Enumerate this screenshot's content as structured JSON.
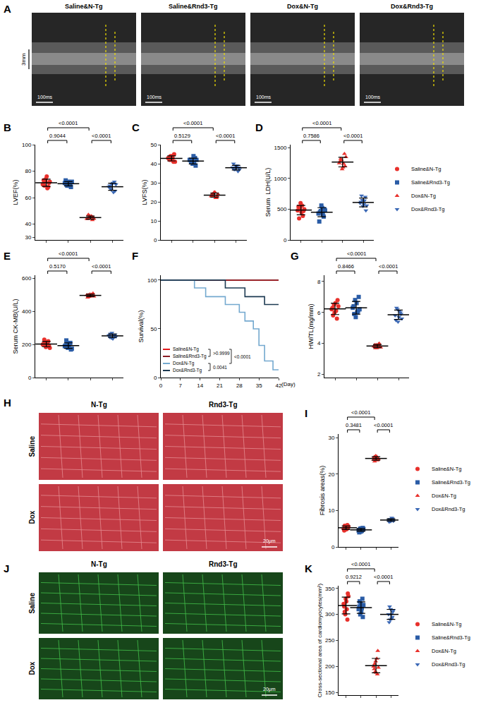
{
  "images": [
    {
      "panel": "A",
      "tiles": [
        "Saline&N-Tg",
        "Saline&Rnd3-Tg",
        "Dox&N-Tg",
        "Dox&Rnd3-Tg"
      ],
      "time_scale": "100ms",
      "depth_scale": "3mm"
    },
    {
      "panel": "H",
      "columns": [
        "N-Tg",
        "Rnd3-Tg"
      ],
      "rows": [
        "Saline",
        "Dox"
      ],
      "scale_bar": "20μm"
    },
    {
      "panel": "J",
      "columns": [
        "N-Tg",
        "Rnd3-Tg"
      ],
      "rows": [
        "Saline",
        "Dox"
      ],
      "scale_bar": "20μm"
    }
  ],
  "chart_data": [
    {
      "panel": "B",
      "type": "dot",
      "ylabel": "LVEF(%)",
      "ylim": [
        28,
        100
      ],
      "yticks": [
        30,
        40,
        60,
        80,
        100
      ],
      "grid": false,
      "tick_labels": "y",
      "series": [
        {
          "name": "Saline&N-Tg",
          "color": "#e8302b",
          "marker": "circle",
          "values": [
            70,
            72,
            74,
            68,
            71,
            73,
            69,
            76,
            67,
            72
          ]
        },
        {
          "name": "Saline&Rnd3-Tg",
          "color": "#2a5ca6",
          "marker": "square",
          "values": [
            71,
            69,
            72,
            70,
            68,
            73,
            70,
            69,
            71,
            72
          ]
        },
        {
          "name": "Dox&N-Tg",
          "color": "#e8302b",
          "marker": "triangle-up",
          "values": [
            44,
            45,
            46,
            43,
            45,
            44,
            47,
            45,
            46,
            44
          ]
        },
        {
          "name": "Dox&Rnd3-Tg",
          "color": "#3b68b5",
          "marker": "triangle-down",
          "values": [
            68,
            66,
            70,
            72,
            65,
            69,
            67,
            71,
            64,
            70
          ]
        }
      ],
      "comparisons": [
        {
          "groups": [
            0,
            2
          ],
          "label": "<0.0001"
        },
        {
          "groups": [
            0,
            1
          ],
          "label": "0.9044"
        },
        {
          "groups": [
            2,
            3
          ],
          "label": "<0.0001"
        }
      ]
    },
    {
      "panel": "C",
      "type": "dot",
      "ylabel": "LVFS(%)",
      "ylim": [
        0,
        50
      ],
      "yticks": [
        0,
        10,
        20,
        30,
        40,
        50
      ],
      "grid": false,
      "tick_labels": "y",
      "series": [
        {
          "name": "Saline&N-Tg",
          "color": "#e8302b",
          "marker": "circle",
          "values": [
            43,
            44,
            42,
            41,
            45,
            43,
            42,
            44,
            43,
            41
          ]
        },
        {
          "name": "Saline&Rnd3-Tg",
          "color": "#2a5ca6",
          "marker": "square",
          "values": [
            42,
            41,
            40,
            43,
            39,
            42,
            41,
            44,
            40,
            42
          ]
        },
        {
          "name": "Dox&N-Tg",
          "color": "#e8302b",
          "marker": "triangle-up",
          "values": [
            23,
            24,
            25,
            22,
            23,
            24,
            23,
            25,
            22,
            24
          ]
        },
        {
          "name": "Dox&Rnd3-Tg",
          "color": "#3b68b5",
          "marker": "triangle-down",
          "values": [
            38,
            37,
            39,
            36,
            38,
            40,
            37,
            38,
            39,
            37
          ]
        }
      ],
      "comparisons": [
        {
          "groups": [
            0,
            2
          ],
          "label": "<0.0001"
        },
        {
          "groups": [
            0,
            1
          ],
          "label": "0.5129"
        },
        {
          "groups": [
            2,
            3
          ],
          "label": "<0.0001"
        }
      ]
    },
    {
      "panel": "D",
      "type": "dot",
      "ylabel": "Serum  LDH(U/L)",
      "ylim": [
        0,
        1550
      ],
      "yticks": [
        0,
        500,
        1000,
        1500
      ],
      "grid": false,
      "tick_labels": "y",
      "legend": "right",
      "series": [
        {
          "name": "Saline&N-Tg",
          "color": "#e8302b",
          "marker": "circle",
          "values": [
            480,
            520,
            600,
            390,
            470,
            540,
            350,
            450,
            560,
            500
          ]
        },
        {
          "name": "Saline&Rnd3-Tg",
          "color": "#2a5ca6",
          "marker": "square",
          "values": [
            430,
            470,
            560,
            380,
            500,
            300,
            450,
            520,
            420,
            480
          ]
        },
        {
          "name": "Dox&N-Tg",
          "color": "#e8302b",
          "marker": "triangle-up",
          "values": [
            1250,
            1300,
            1150,
            1400,
            1200,
            1280,
            1320,
            1180,
            1240,
            1350
          ]
        },
        {
          "name": "Dox&Rnd3-Tg",
          "color": "#3b68b5",
          "marker": "triangle-down",
          "values": [
            600,
            650,
            550,
            700,
            480,
            620,
            720,
            580,
            640,
            560
          ]
        }
      ],
      "comparisons": [
        {
          "groups": [
            0,
            2
          ],
          "label": "<0.0001"
        },
        {
          "groups": [
            0,
            1
          ],
          "label": "0.7586"
        },
        {
          "groups": [
            2,
            3
          ],
          "label": "<0.0001"
        }
      ]
    },
    {
      "panel": "E",
      "type": "dot",
      "ylabel": "Serum CK-MB(U/L)",
      "ylim": [
        0,
        620
      ],
      "yticks": [
        0,
        200,
        400,
        600
      ],
      "grid": false,
      "tick_labels": "y",
      "series": [
        {
          "name": "Saline&N-Tg",
          "color": "#e8302b",
          "marker": "circle",
          "values": [
            200,
            210,
            185,
            220,
            195,
            205,
            230,
            190,
            215,
            180
          ]
        },
        {
          "name": "Saline&Rnd3-Tg",
          "color": "#2a5ca6",
          "marker": "square",
          "values": [
            190,
            200,
            180,
            210,
            170,
            195,
            225,
            185,
            205,
            175
          ]
        },
        {
          "name": "Dox&N-Tg",
          "color": "#e8302b",
          "marker": "triangle-up",
          "values": [
            500,
            490,
            505,
            495,
            510,
            485,
            500,
            498,
            502,
            492
          ]
        },
        {
          "name": "Dox&Rnd3-Tg",
          "color": "#3b68b5",
          "marker": "triangle-down",
          "values": [
            255,
            240,
            270,
            250,
            260,
            245,
            265,
            235,
            258,
            248
          ]
        }
      ],
      "comparisons": [
        {
          "groups": [
            0,
            2
          ],
          "label": "<0.0001"
        },
        {
          "groups": [
            0,
            1
          ],
          "label": "0.5170"
        },
        {
          "groups": [
            2,
            3
          ],
          "label": "<0.0001"
        }
      ]
    },
    {
      "panel": "F",
      "type": "line",
      "line_style": "step",
      "ylabel": "Survival(%)",
      "xlabel": "(Day)",
      "xlim": [
        0,
        42
      ],
      "xticks": [
        0,
        7,
        14,
        21,
        28,
        35,
        42
      ],
      "ylim": [
        0,
        105
      ],
      "yticks": [
        0,
        50,
        100
      ],
      "grid": false,
      "legend": "lower left",
      "series": [
        {
          "name": "Saline&N-Tg",
          "color": "#e31a1c",
          "x": [
            0,
            42
          ],
          "values": [
            100,
            100
          ]
        },
        {
          "name": "Saline&Rnd3-Tg",
          "color": "#8b1c24",
          "x": [
            0,
            42
          ],
          "values": [
            100,
            100
          ]
        },
        {
          "name": "Dox&N-Tg",
          "color": "#74a9cf",
          "x": [
            0,
            12,
            16,
            23,
            28,
            30,
            33,
            35,
            37,
            40,
            42
          ],
          "values": [
            100,
            92,
            83,
            75,
            67,
            58,
            50,
            33,
            17,
            8,
            8
          ]
        },
        {
          "name": "Dox&Rnd3-Tg",
          "color": "#1d3a52",
          "x": [
            0,
            23,
            30,
            37,
            42
          ],
          "values": [
            100,
            92,
            83,
            75,
            75
          ]
        }
      ],
      "comparisons": [
        {
          "groups": [
            0,
            1
          ],
          "label": ">0.9999"
        },
        {
          "groups": [
            0,
            2
          ],
          "label": "<0.0001"
        },
        {
          "groups": [
            2,
            3
          ],
          "label": "0.0041"
        }
      ]
    },
    {
      "panel": "G",
      "type": "dot",
      "ylabel": "HW/TL(mg/mm)",
      "ylim": [
        1.8,
        8.4
      ],
      "yticks": [
        2,
        4,
        6,
        8
      ],
      "grid": false,
      "tick_labels": "y",
      "series": [
        {
          "name": "Saline&N-Tg",
          "color": "#e8302b",
          "marker": "circle",
          "values": [
            6.2,
            6.5,
            6.0,
            5.6,
            6.8,
            6.3,
            5.8,
            6.6,
            6.1,
            6.4
          ]
        },
        {
          "name": "Saline&Rnd3-Tg",
          "color": "#2a5ca6",
          "marker": "square",
          "values": [
            6.3,
            6.8,
            5.7,
            6.1,
            7.0,
            6.4,
            5.9,
            6.6,
            6.0,
            6.2
          ]
        },
        {
          "name": "Dox&N-Tg",
          "color": "#e8302b",
          "marker": "triangle-up",
          "values": [
            3.8,
            3.9,
            3.7,
            4.0,
            3.8,
            3.9,
            3.7,
            3.85,
            3.95,
            3.75
          ]
        },
        {
          "name": "Dox&Rnd3-Tg",
          "color": "#3b68b5",
          "marker": "triangle-down",
          "values": [
            5.8,
            6.2,
            5.4,
            6.0,
            5.9,
            5.5,
            6.3,
            5.7,
            6.1,
            5.6
          ]
        }
      ],
      "comparisons": [
        {
          "groups": [
            0,
            2
          ],
          "label": "<0.0001"
        },
        {
          "groups": [
            0,
            1
          ],
          "label": "0.8466"
        },
        {
          "groups": [
            2,
            3
          ],
          "label": "<0.0001"
        }
      ]
    },
    {
      "panel": "I",
      "type": "dot",
      "ylabel": "Fibrosis areas(%)",
      "ylim": [
        0,
        31
      ],
      "yticks": [
        0,
        10,
        20,
        30
      ],
      "grid": false,
      "tick_labels": "y",
      "legend": "right",
      "series": [
        {
          "name": "Saline&N-Tg",
          "color": "#e8302b",
          "marker": "circle",
          "values": [
            5.0,
            5.5,
            4.8,
            6.0,
            5.2,
            4.5,
            5.8,
            5.3,
            4.9,
            5.6
          ]
        },
        {
          "name": "Saline&Rnd3-Tg",
          "color": "#2a5ca6",
          "marker": "square",
          "values": [
            4.5,
            5.0,
            4.2,
            4.8,
            5.2,
            4.0,
            4.7,
            5.1,
            4.4,
            4.9
          ]
        },
        {
          "name": "Dox&N-Tg",
          "color": "#e8302b",
          "marker": "triangle-up",
          "values": [
            24.0,
            24.5,
            25.0,
            23.8,
            24.3,
            24.7,
            23.5,
            24.2,
            24.8,
            24.1
          ]
        },
        {
          "name": "Dox&Rnd3-Tg",
          "color": "#3b68b5",
          "marker": "triangle-down",
          "values": [
            7.2,
            7.6,
            7.0,
            7.8,
            7.4,
            6.9,
            7.5,
            7.3,
            8.0,
            7.1
          ]
        }
      ],
      "comparisons": [
        {
          "groups": [
            0,
            2
          ],
          "label": "<0.0001"
        },
        {
          "groups": [
            0,
            1
          ],
          "label": "0.3481"
        },
        {
          "groups": [
            2,
            3
          ],
          "label": "<0.0001"
        }
      ]
    },
    {
      "panel": "K",
      "type": "dot",
      "ylabel": "Cross-sectional area of cardiomyocytes(mm²)",
      "ylim": [
        145,
        355
      ],
      "yticks": [
        150,
        200,
        250,
        300,
        350
      ],
      "grid": false,
      "tick_labels": "y",
      "legend": "right",
      "series": [
        {
          "name": "Saline&N-Tg",
          "color": "#e8302b",
          "marker": "circle",
          "values": [
            320,
            300,
            330,
            290,
            340,
            315,
            305,
            325,
            310,
            335
          ]
        },
        {
          "name": "Saline&Rnd3-Tg",
          "color": "#2a5ca6",
          "marker": "square",
          "values": [
            310,
            300,
            320,
            330,
            295,
            315,
            325,
            305,
            312,
            318
          ]
        },
        {
          "name": "Dox&N-Tg",
          "color": "#e8302b",
          "marker": "triangle-up",
          "values": [
            200,
            190,
            210,
            185,
            230,
            195,
            205,
            188,
            215,
            198
          ]
        },
        {
          "name": "Dox&Rnd3-Tg",
          "color": "#3b68b5",
          "marker": "triangle-down",
          "values": [
            300,
            290,
            310,
            295,
            305,
            285,
            315,
            300,
            292,
            308
          ]
        }
      ],
      "comparisons": [
        {
          "groups": [
            0,
            2
          ],
          "label": "<0.0001"
        },
        {
          "groups": [
            0,
            1
          ],
          "label": "0.9212"
        },
        {
          "groups": [
            2,
            3
          ],
          "label": "<0.0001"
        }
      ]
    }
  ]
}
